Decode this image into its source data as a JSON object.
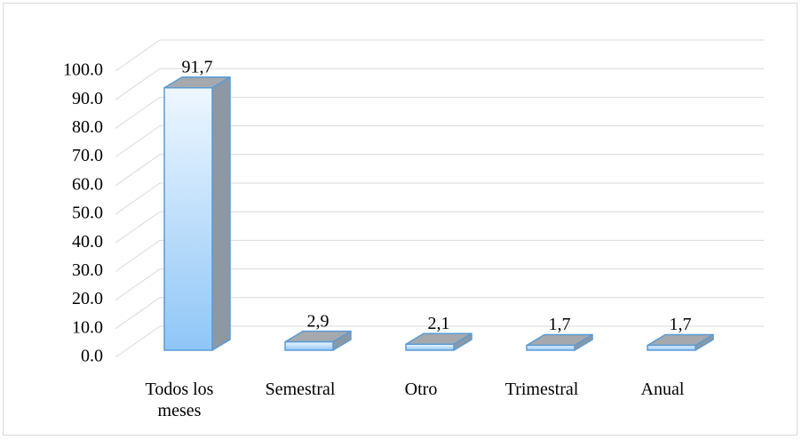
{
  "chart_data": {
    "type": "bar3d",
    "categories": [
      "Todos los meses",
      "Semestral",
      "Otro",
      "Trimestral",
      "Anual"
    ],
    "values": [
      91.7,
      2.9,
      2.1,
      1.7,
      1.7
    ],
    "value_labels": [
      "91,7",
      "2,9",
      "2,1",
      "1,7",
      "1,7"
    ],
    "color": "#5b9bd5",
    "ylim": [
      0,
      100
    ],
    "yticks": [
      {
        "value": 0,
        "label": "0.0"
      },
      {
        "value": 10,
        "label": "10.0"
      },
      {
        "value": 20,
        "label": "20.0"
      },
      {
        "value": 30,
        "label": "30.0"
      },
      {
        "value": 40,
        "label": "40.0"
      },
      {
        "value": 50,
        "label": "50.0"
      },
      {
        "value": 60,
        "label": "60.0"
      },
      {
        "value": 70,
        "label": "70.0"
      },
      {
        "value": 80,
        "label": "80.0"
      },
      {
        "value": 90,
        "label": "90.0"
      },
      {
        "value": 100,
        "label": "100.0"
      }
    ],
    "grid": true
  }
}
